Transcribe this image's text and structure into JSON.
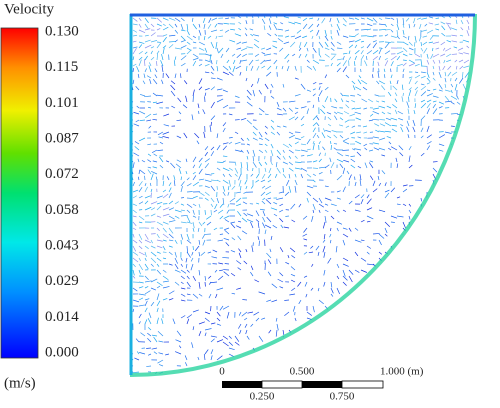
{
  "legend": {
    "title": "Velocity",
    "ticks": [
      "0.130",
      "0.115",
      "0.101",
      "0.087",
      "0.072",
      "0.058",
      "0.043",
      "0.029",
      "0.014",
      "0.000"
    ],
    "unit": "(m/s)"
  },
  "scale_bar": {
    "top_labels": [
      "0",
      "0.500",
      "1.000 (m)"
    ],
    "bottom_labels": [
      "0.250",
      "0.750"
    ]
  }
}
